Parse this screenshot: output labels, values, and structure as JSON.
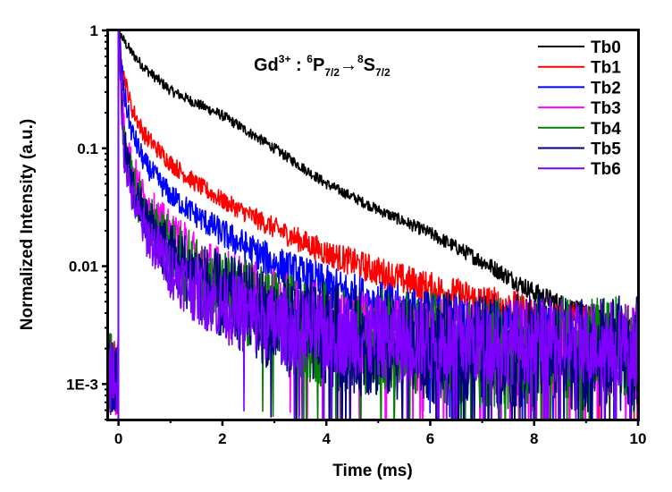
{
  "chart_data": {
    "type": "line",
    "title": "",
    "annotation": {
      "ion": "Gd",
      "charge": "3+",
      "separator": " : ",
      "initial_mult": "6",
      "initial_term": "P",
      "initial_j": "7/2",
      "arrow": "→",
      "final_mult": "8",
      "final_term": "S",
      "final_j": "7/2"
    },
    "xlabel": "Time (ms)",
    "ylabel": "Normalized Intensity (a.u.)",
    "xlim": [
      -0.2,
      10
    ],
    "ylim": [
      0.0005,
      1
    ],
    "yscale": "log",
    "x_ticks": [
      0,
      2,
      4,
      6,
      8,
      10
    ],
    "x_tick_labels": [
      "0",
      "2",
      "4",
      "6",
      "8",
      "10"
    ],
    "y_ticks": [
      1,
      0.1,
      0.01,
      0.001
    ],
    "y_tick_labels": [
      "1",
      "0.1",
      "0.01",
      "1E-3"
    ],
    "grid": false,
    "legend_position": "top-right",
    "x": [
      0,
      0.1,
      0.25,
      0.5,
      1,
      1.5,
      2,
      3,
      4,
      5,
      6,
      7,
      8,
      9,
      10
    ],
    "series": [
      {
        "name": "Tb0",
        "color": "#000000",
        "noise": 0.04,
        "background": 0.0,
        "values": [
          1,
          0.82,
          0.65,
          0.48,
          0.31,
          0.24,
          0.19,
          0.1,
          0.05,
          0.03,
          0.019,
          0.011,
          0.006,
          0.0038,
          0.0028
        ]
      },
      {
        "name": "Tb1",
        "color": "#ff0000",
        "noise": 0.07,
        "background": 0.0,
        "values": [
          1,
          0.42,
          0.22,
          0.13,
          0.075,
          0.05,
          0.036,
          0.021,
          0.013,
          0.009,
          0.0065,
          0.005,
          0.0039,
          0.0031,
          0.0026
        ]
      },
      {
        "name": "Tb2",
        "color": "#0000ff",
        "noise": 0.09,
        "background": 0.0,
        "values": [
          1,
          0.3,
          0.14,
          0.075,
          0.04,
          0.027,
          0.019,
          0.0105,
          0.0068,
          0.0048,
          0.0038,
          0.0031,
          0.0027,
          0.0024,
          0.0022
        ]
      },
      {
        "name": "Tb3",
        "color": "#ff00ff",
        "noise": 0.15,
        "background": 0.0,
        "values": [
          1,
          0.16,
          0.07,
          0.036,
          0.018,
          0.011,
          0.0075,
          0.0043,
          0.003,
          0.0024,
          0.0021,
          0.002,
          0.0019,
          0.0019,
          0.0019
        ]
      },
      {
        "name": "Tb4",
        "color": "#007f00",
        "noise": 0.18,
        "background": 0.0,
        "values": [
          1,
          0.12,
          0.052,
          0.028,
          0.0135,
          0.0085,
          0.0058,
          0.0035,
          0.0026,
          0.0022,
          0.002,
          0.0019,
          0.0019,
          0.0018,
          0.0018
        ]
      },
      {
        "name": "Tb5",
        "color": "#00007f",
        "noise": 0.18,
        "background": 0.0,
        "values": [
          1,
          0.11,
          0.048,
          0.025,
          0.012,
          0.0078,
          0.0054,
          0.0034,
          0.0026,
          0.0022,
          0.002,
          0.0019,
          0.0019,
          0.0018,
          0.0018
        ]
      },
      {
        "name": "Tb6",
        "color": "#7f00ff",
        "noise": 0.14,
        "background": 0.0,
        "values": [
          1,
          0.095,
          0.04,
          0.02,
          0.0095,
          0.0062,
          0.0046,
          0.0032,
          0.0027,
          0.0025,
          0.0024,
          0.0023,
          0.0023,
          0.0023,
          0.0022
        ]
      }
    ],
    "pre_zero_level": {
      "x": [
        -0.2,
        0
      ],
      "approx_value": 0.0012
    }
  }
}
